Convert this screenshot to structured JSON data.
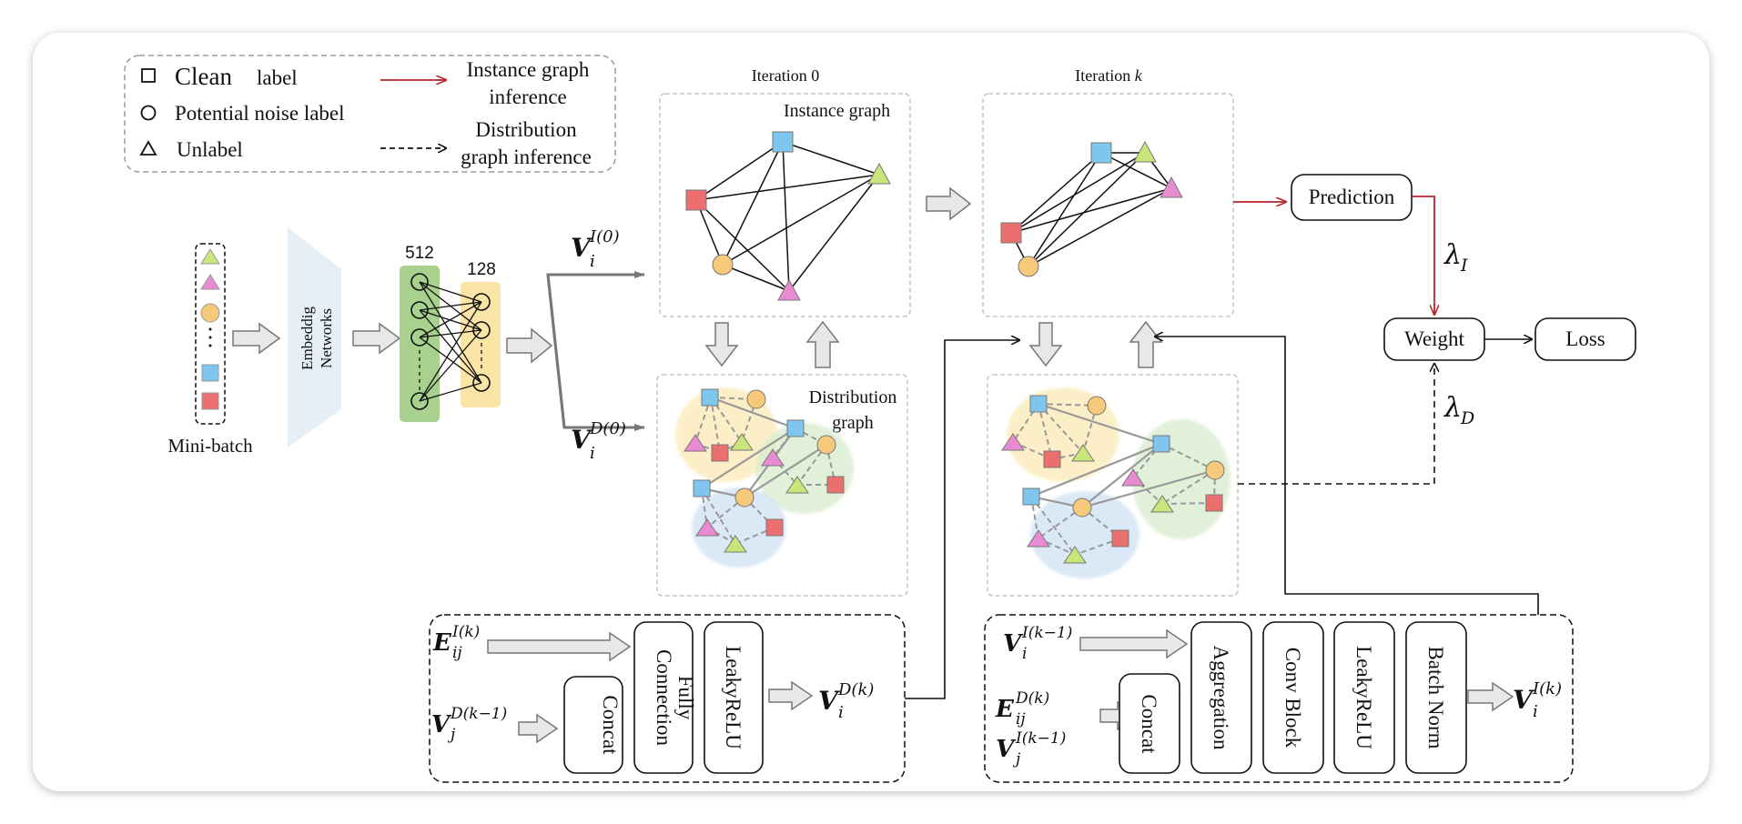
{
  "legend": {
    "clean": "Clean",
    "clean_suffix": "label",
    "noise": "Potential noise label",
    "unlabel": "Unlabel",
    "instance_line1": "Instance graph",
    "instance_line2": "inference",
    "distribution_line1": "Distribution",
    "distribution_line2": "graph inference"
  },
  "input": {
    "mini_batch": "Mini-batch",
    "embed_line1": "Embeddig",
    "embed_line2": "Networks",
    "layer1": "512",
    "layer2": "128",
    "dots": "·"
  },
  "features": {
    "vi0_sup": "I(0)",
    "vd0_sup": "D(0)",
    "V": "V",
    "sub_i": "i",
    "sub_j": "j",
    "sub_ij": "ij",
    "E": "E"
  },
  "iteration0": {
    "title": "Iteration 0",
    "instance_graph": "Instance graph",
    "dist_line1": "Distribution",
    "dist_line2": "graph"
  },
  "iterationk": {
    "title_prefix": "Iteration",
    "title_var": "k"
  },
  "output": {
    "prediction": "Prediction",
    "weight": "Weight",
    "loss": "Loss",
    "lambda_i": "λ",
    "lambda_i_sub": "I",
    "lambda_d": "λ",
    "lambda_d_sub": "D"
  },
  "block_left": {
    "e_sup": "I(k)",
    "vj_sup": "D(k−1)",
    "concat": "Concat",
    "fc_line1": "Fully",
    "fc_line2": "Connection",
    "leaky": "LeakyReLU",
    "out_sup": "D(k)"
  },
  "block_right": {
    "vi_sup": "I(k−1)",
    "e_sup": "D(k)",
    "vj_sup": "I(k−1)",
    "concat": "Concat",
    "aggregation": "Aggregation",
    "conv": "Conv Block",
    "leaky": "LeakyReLU",
    "bn": "Batch Norm",
    "out_sup": "I(k)"
  },
  "colors": {
    "blue": "#7ec6ee",
    "green": "#c8e67a",
    "pink": "#e98bd2",
    "orange": "#f7c97a",
    "red": "#ec6f6f",
    "red_arrow": "#b5262d",
    "green_layer": "#a9d18e",
    "yellow_layer": "#fbe5a6",
    "embed_bg": "#e6eef6"
  }
}
